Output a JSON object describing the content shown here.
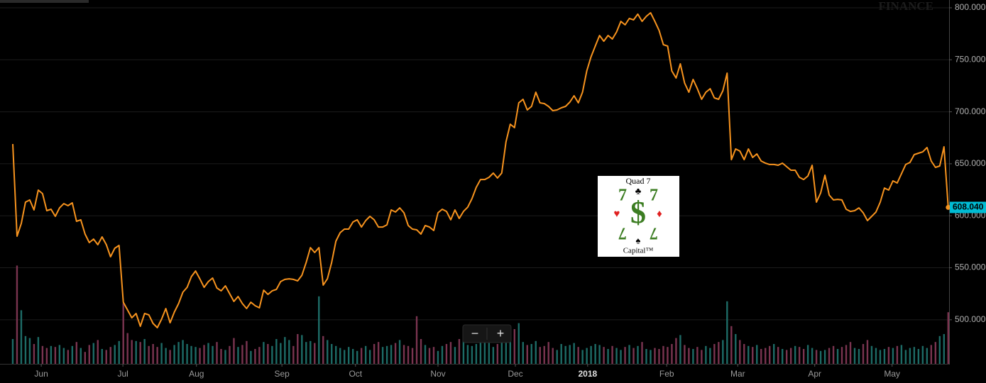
{
  "chart_data": {
    "type": "line",
    "series": [
      {
        "color": "#f7931e",
        "values": [
          669.0,
          580.4,
          592.6,
          613.1,
          615.2,
          605.6,
          624.7,
          621.3,
          604.9,
          606.3,
          599.5,
          607.6,
          611.7,
          609.7,
          612.4,
          594.7,
          596.1,
          582.4,
          574.2,
          577.6,
          572.2,
          579.7,
          572.2,
          560.6,
          568.8,
          571.5,
          516.9,
          509.4,
          501.9,
          506.0,
          493.7,
          506.0,
          504.7,
          496.5,
          492.4,
          500.6,
          510.8,
          497.1,
          507.4,
          515.6,
          526.5,
          531.2,
          541.5,
          546.9,
          539.4,
          531.2,
          536.7,
          540.1,
          530.6,
          527.8,
          532.6,
          525.1,
          517.6,
          522.4,
          515.6,
          510.8,
          516.9,
          513.5,
          511.5,
          528.5,
          524.4,
          527.8,
          529.2,
          536.7,
          538.8,
          539.4,
          538.8,
          537.4,
          542.8,
          555.1,
          569.4,
          564.7,
          569.4,
          533.3,
          539.4,
          555.1,
          575.6,
          583.8,
          587.2,
          587.2,
          594.0,
          596.1,
          589.2,
          595.4,
          599.5,
          596.1,
          589.2,
          589.2,
          591.3,
          605.6,
          603.6,
          607.6,
          602.9,
          590.6,
          587.2,
          586.5,
          582.4,
          590.6,
          589.2,
          585.8,
          602.9,
          606.3,
          604.2,
          596.1,
          605.6,
          597.4,
          604.2,
          608.3,
          616.5,
          627.4,
          634.9,
          634.9,
          637.0,
          641.1,
          636.3,
          641.1,
          671.1,
          688.1,
          684.7,
          708.6,
          712.0,
          701.8,
          705.2,
          718.8,
          708.6,
          707.9,
          705.2,
          701.1,
          701.8,
          703.8,
          705.2,
          709.3,
          715.4,
          708.6,
          718.8,
          739.3,
          752.9,
          763.2,
          773.4,
          767.9,
          773.4,
          770.0,
          776.8,
          787.0,
          783.6,
          789.8,
          788.4,
          793.9,
          787.0,
          791.8,
          795.2,
          787.0,
          778.2,
          764.5,
          763.2,
          739.3,
          732.5,
          746.1,
          727.7,
          718.8,
          731.1,
          722.2,
          712.0,
          718.8,
          722.2,
          713.4,
          712.0,
          720.2,
          737.2,
          654.0,
          664.3,
          662.2,
          654.0,
          664.3,
          656.1,
          659.5,
          652.7,
          650.6,
          649.3,
          649.3,
          648.6,
          650.6,
          647.2,
          643.8,
          643.8,
          637.0,
          634.9,
          638.3,
          648.6,
          613.1,
          622.0,
          639.0,
          619.9,
          615.2,
          615.8,
          615.2,
          606.3,
          604.2,
          604.9,
          607.6,
          602.9,
          595.4,
          599.5,
          603.6,
          613.1,
          626.7,
          624.7,
          633.6,
          631.5,
          640.4,
          649.3,
          651.3,
          658.8,
          660.2,
          661.5,
          665.6,
          652.7,
          646.5,
          647.9,
          666.3,
          608.04
        ]
      }
    ],
    "last_price_label": "608.040",
    "last_price_color": "#00bcd4",
    "volume": {
      "values": [
        25,
        99,
        54,
        28,
        26,
        20,
        27,
        18,
        16,
        18,
        17,
        19,
        16,
        14,
        18,
        22,
        16,
        12,
        19,
        21,
        24,
        15,
        14,
        17,
        19,
        23,
        61,
        31,
        24,
        23,
        22,
        25,
        18,
        20,
        17,
        21,
        16,
        14,
        19,
        22,
        24,
        20,
        18,
        17,
        16,
        19,
        21,
        18,
        22,
        15,
        14,
        18,
        26,
        17,
        19,
        23,
        13,
        15,
        17,
        22,
        20,
        18,
        25,
        21,
        27,
        24,
        18,
        30,
        29,
        22,
        23,
        21,
        68,
        28,
        24,
        20,
        18,
        16,
        14,
        17,
        15,
        13,
        16,
        18,
        14,
        20,
        22,
        17,
        18,
        19,
        21,
        24,
        19,
        18,
        16,
        48,
        25,
        19,
        16,
        17,
        13,
        18,
        20,
        22,
        17,
        25,
        24,
        19,
        18,
        20,
        23,
        26,
        21,
        17,
        20,
        22,
        28,
        24,
        35,
        41,
        22,
        19,
        20,
        23,
        17,
        18,
        22,
        16,
        14,
        20,
        18,
        19,
        21,
        17,
        14,
        16,
        18,
        20,
        19,
        17,
        15,
        18,
        16,
        14,
        17,
        19,
        16,
        18,
        22,
        15,
        14,
        16,
        15,
        18,
        17,
        20,
        26,
        29,
        19,
        16,
        15,
        17,
        14,
        18,
        16,
        20,
        22,
        24,
        63,
        38,
        30,
        24,
        20,
        18,
        17,
        19,
        15,
        16,
        18,
        20,
        17,
        15,
        14,
        16,
        18,
        17,
        15,
        19,
        16,
        14,
        13,
        14,
        16,
        18,
        15,
        17,
        19,
        22,
        16,
        15,
        20,
        24,
        18,
        16,
        14,
        15,
        17,
        16,
        18,
        19,
        14,
        16,
        17,
        15,
        18,
        16,
        19,
        22,
        28,
        30,
        52
      ],
      "volume_lim": [
        0,
        100
      ],
      "up_color": "#1d6b66",
      "down_color": "#7a3450"
    },
    "xlim": [
      -3,
      220.2
    ],
    "xticks": [
      {
        "value": 6.7,
        "label": "Jun"
      },
      {
        "value": 25.9,
        "label": "Jul"
      },
      {
        "value": 43.2,
        "label": "Aug"
      },
      {
        "value": 63.3,
        "label": "Sep"
      },
      {
        "value": 80.6,
        "label": "Oct"
      },
      {
        "value": 100,
        "label": "Nov"
      },
      {
        "value": 118.2,
        "label": "Dec"
      },
      {
        "value": 135.2,
        "label": "2018"
      },
      {
        "value": 153.8,
        "label": "Feb"
      },
      {
        "value": 170.5,
        "label": "Mar"
      },
      {
        "value": 188.6,
        "label": "Apr"
      },
      {
        "value": 206.8,
        "label": "May"
      }
    ],
    "ylim": [
      457.6,
      807.5
    ],
    "yticks": [
      {
        "value": 500,
        "label": "500.000"
      },
      {
        "value": 550,
        "label": "550.000"
      },
      {
        "value": 600,
        "label": "600.000"
      },
      {
        "value": 650,
        "label": "650.000"
      },
      {
        "value": 700,
        "label": "700.000"
      },
      {
        "value": 750,
        "label": "750.000"
      },
      {
        "value": 800,
        "label": "800.000"
      }
    ],
    "grid": true
  },
  "watermark": "FINANCE",
  "logo": {
    "top": "Quad 7",
    "bottom": "Capital™",
    "dollar": "$",
    "sevens": [
      "7",
      "7",
      "7",
      "7"
    ],
    "suits": [
      "♣",
      "♥",
      "♦",
      "♠"
    ]
  },
  "controls": {
    "zoom_out": "−",
    "zoom_in": "+"
  }
}
